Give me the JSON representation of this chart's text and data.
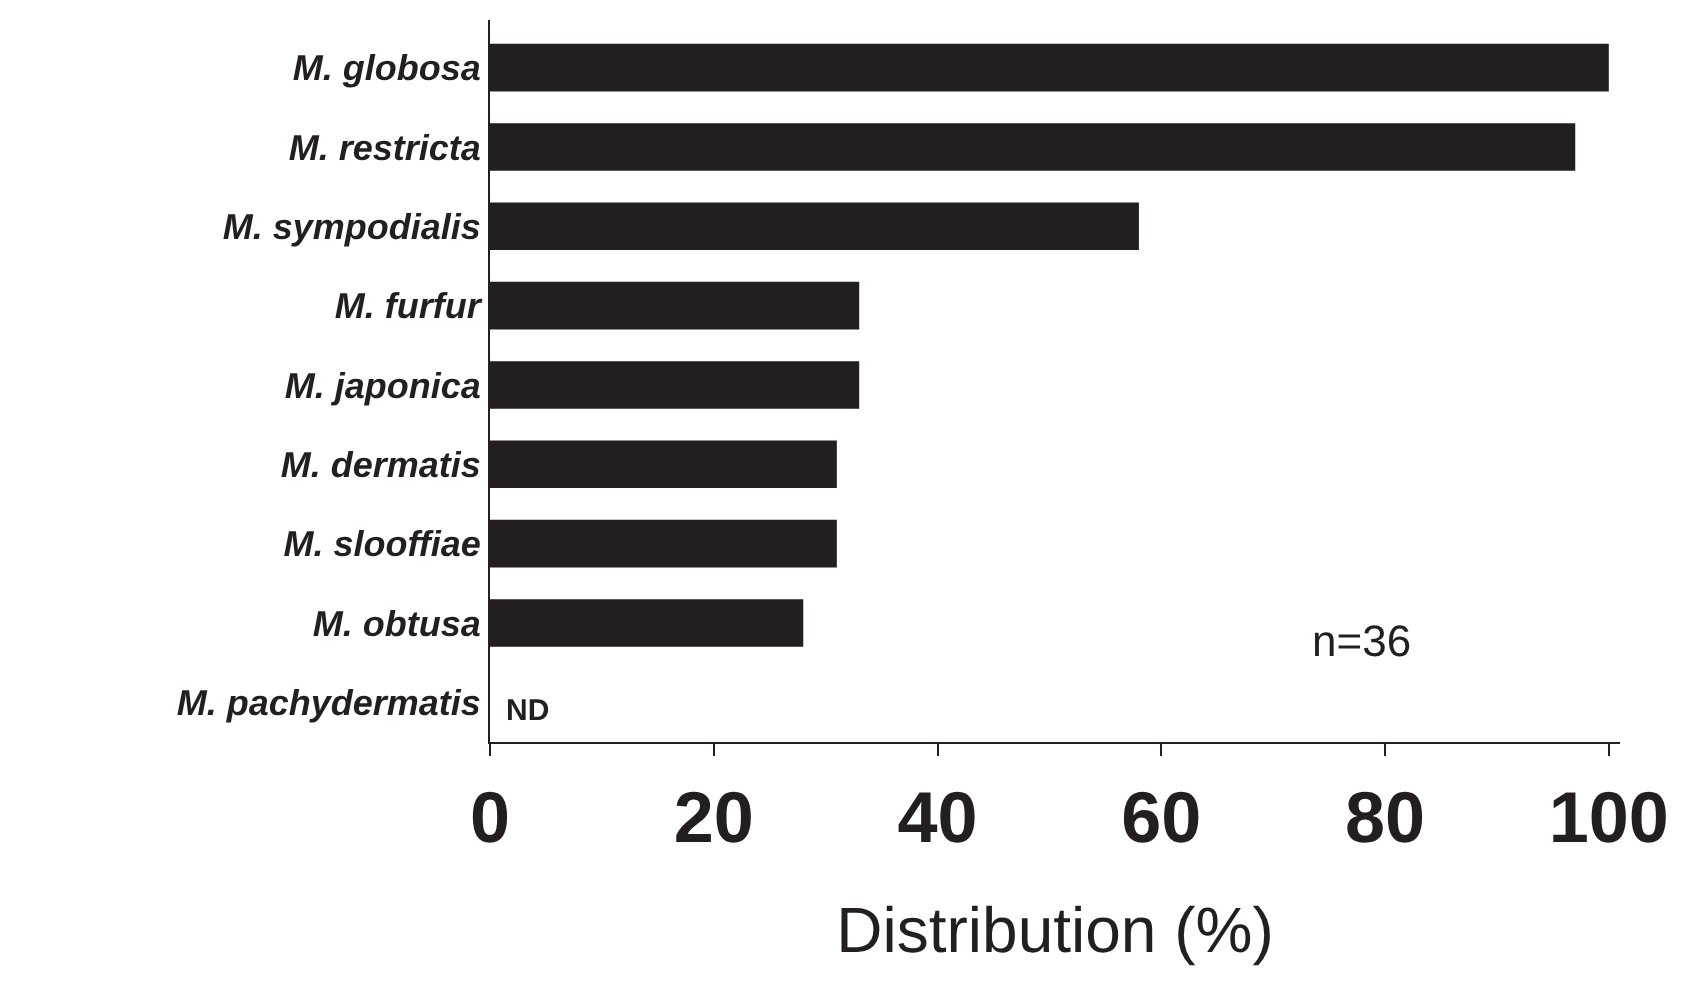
{
  "chart_data": {
    "type": "bar",
    "orientation": "horizontal",
    "xlabel": "Distribution (%)",
    "categories": [
      "M. globosa",
      "M. restricta",
      "M. sympodialis",
      "M. furfur",
      "M. japonica",
      "M. dermatis",
      "M. slooffiae",
      "M. obtusa",
      "M. pachydermatis"
    ],
    "values": [
      100,
      97,
      58,
      33,
      33,
      31,
      31,
      28,
      null
    ],
    "value_labels": [
      null,
      null,
      null,
      null,
      null,
      null,
      null,
      null,
      "ND"
    ],
    "color": "#231f20",
    "xlim": [
      0,
      101
    ],
    "xticks": [
      0,
      20,
      40,
      60,
      80,
      100
    ],
    "legend": false,
    "annotations": [
      "n=36"
    ]
  }
}
